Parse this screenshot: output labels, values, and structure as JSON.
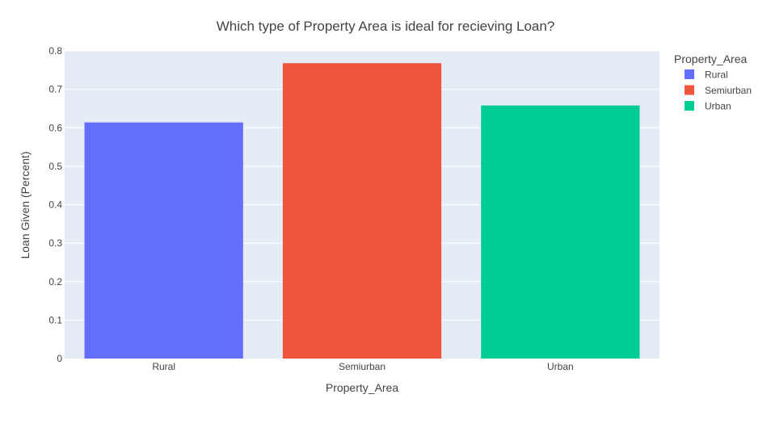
{
  "chart_data": {
    "type": "bar",
    "title": "Which type of Property Area is ideal for recieving Loan?",
    "xlabel": "Property_Area",
    "ylabel": "Loan Given (Percent)",
    "categories": [
      "Rural",
      "Semiurban",
      "Urban"
    ],
    "values": [
      0.614,
      0.768,
      0.658
    ],
    "ylim": [
      0,
      0.8
    ],
    "yticks": [
      0,
      0.1,
      0.2,
      0.3,
      0.4,
      0.5,
      0.6,
      0.7,
      0.8
    ],
    "ytick_labels": [
      "0",
      "0.1",
      "0.2",
      "0.3",
      "0.4",
      "0.5",
      "0.6",
      "0.7",
      "0.8"
    ],
    "grid": true,
    "legend": {
      "title": "Property_Area",
      "placement": "top-right",
      "entries": [
        "Rural",
        "Semiurban",
        "Urban"
      ]
    },
    "colors": [
      "#636efa",
      "#ef553b",
      "#00cc96"
    ],
    "plot_background": "#e5ecf6"
  }
}
